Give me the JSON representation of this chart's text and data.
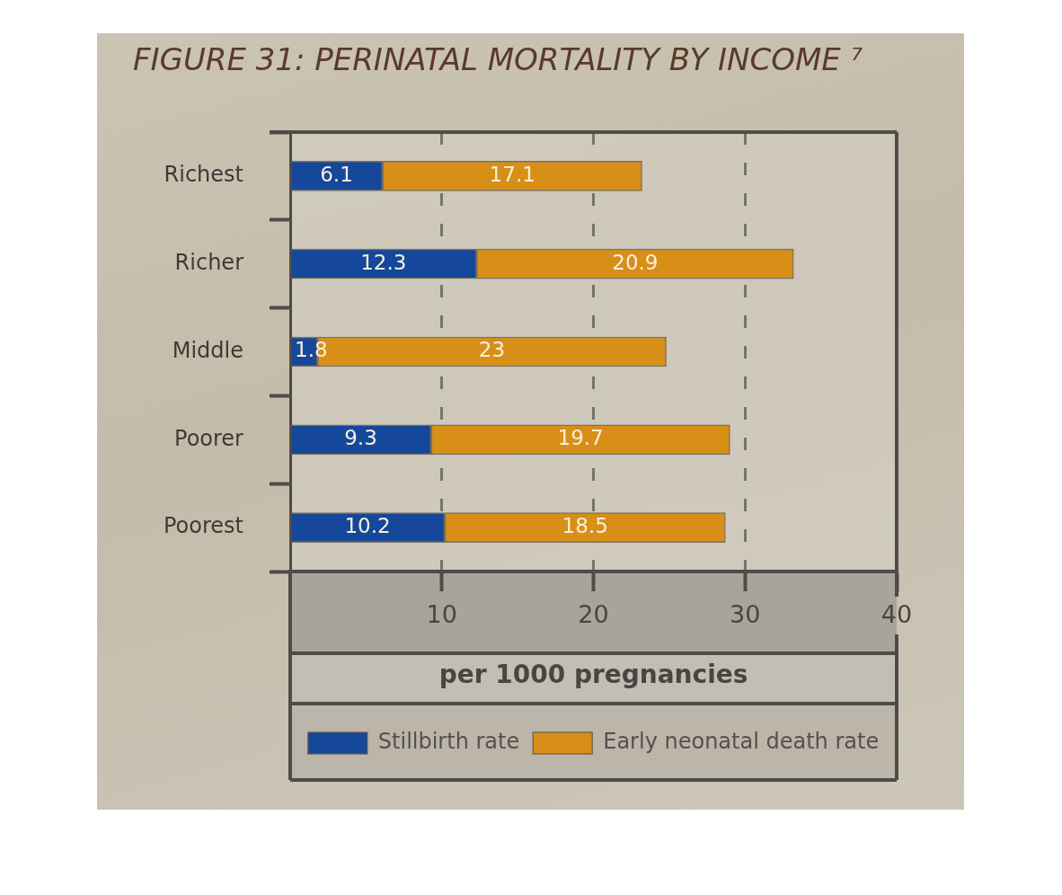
{
  "chart_data": {
    "type": "bar",
    "orientation": "horizontal",
    "stacked": true,
    "title": "FIGURE 31: PERINATAL MORTALITY BY INCOME ⁷",
    "xlabel": "per 1000 pregnancies",
    "categories": [
      "Richest",
      "Richer",
      "Middle",
      "Poorer",
      "Poorest"
    ],
    "series": [
      {
        "name": "Stillbirth rate",
        "color": "#15479a",
        "values": [
          6.1,
          12.3,
          1.8,
          9.3,
          10.2
        ]
      },
      {
        "name": "Early neonatal death rate",
        "color": "#d88f17",
        "values": [
          17.1,
          20.9,
          23,
          19.7,
          18.5
        ]
      }
    ],
    "xlim": [
      0,
      40
    ],
    "xticks": [
      10,
      20,
      30,
      40
    ],
    "grid": "x",
    "legend": "bottom",
    "data_labels": true
  }
}
